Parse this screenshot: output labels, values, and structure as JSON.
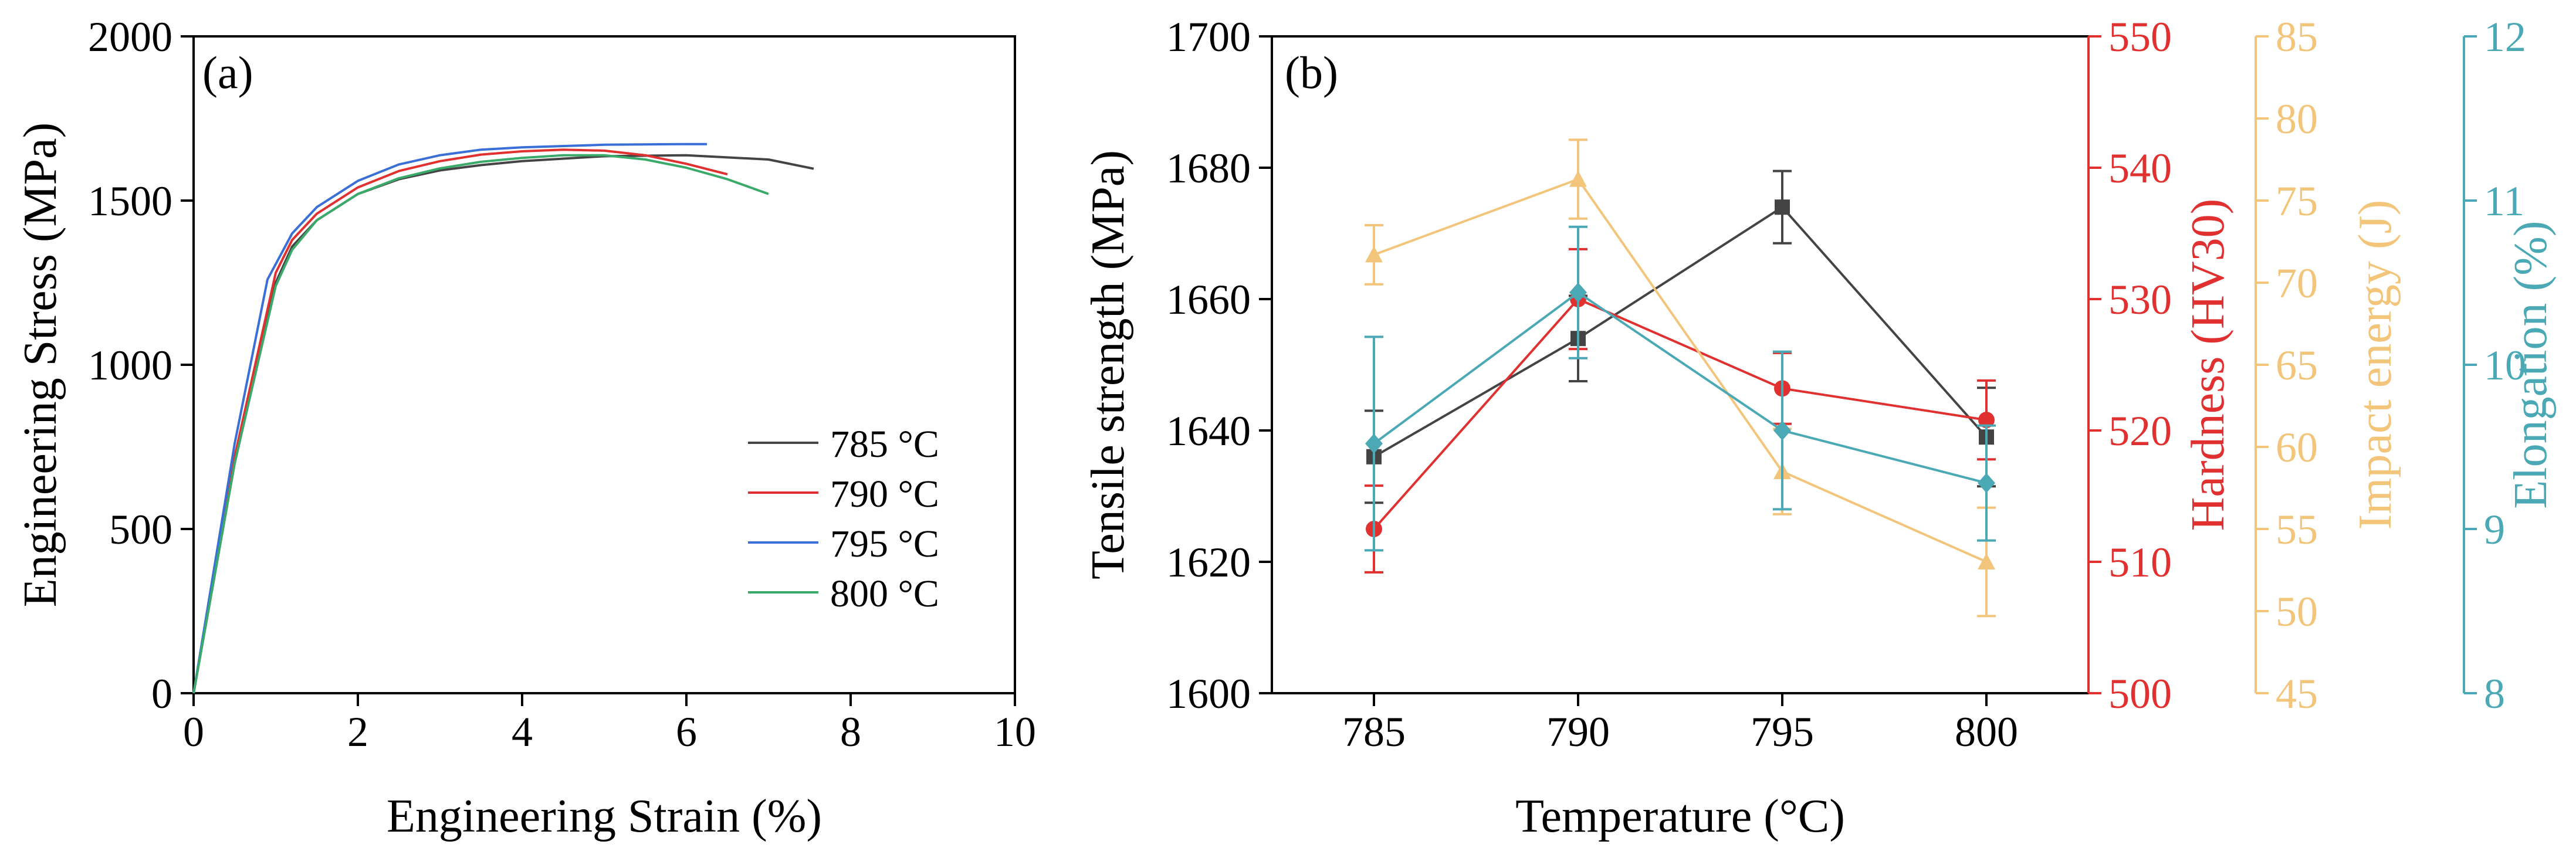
{
  "colors": {
    "black": "#444444",
    "red": "#e03030",
    "blue": "#3a6fd8",
    "green": "#3aaa6a",
    "orange": "#f2c57a",
    "teal": "#4aa9b5"
  },
  "chart_data": [
    {
      "type": "line",
      "panel_label": "(a)",
      "title": "",
      "xlabel": "Engineering Strain (%)",
      "ylabel": "Engineering Stress (MPa)",
      "xlim": [
        0,
        10
      ],
      "ylim": [
        0,
        2000
      ],
      "xticks": [
        0,
        2,
        4,
        6,
        8,
        10
      ],
      "yticks": [
        0,
        500,
        1000,
        1500,
        2000
      ],
      "grid": false,
      "legend_position": "bottom-right",
      "series": [
        {
          "name": "785 °C",
          "color_key": "black",
          "x": [
            0,
            0.5,
            1.0,
            1.2,
            1.5,
            2.0,
            2.5,
            3.0,
            3.5,
            4.0,
            5.0,
            6.0,
            7.0,
            7.55
          ],
          "y": [
            0,
            700,
            1250,
            1360,
            1440,
            1520,
            1565,
            1592,
            1608,
            1620,
            1635,
            1638,
            1625,
            1597
          ]
        },
        {
          "name": "790 °C",
          "color_key": "red",
          "x": [
            0,
            0.5,
            1.0,
            1.2,
            1.5,
            2.0,
            2.5,
            3.0,
            3.5,
            4.0,
            4.5,
            5.0,
            5.5,
            6.0,
            6.5
          ],
          "y": [
            0,
            720,
            1280,
            1380,
            1460,
            1540,
            1590,
            1620,
            1640,
            1650,
            1655,
            1652,
            1638,
            1612,
            1580
          ]
        },
        {
          "name": "795 °C",
          "color_key": "blue",
          "x": [
            0,
            0.5,
            0.9,
            1.2,
            1.5,
            2.0,
            2.5,
            3.0,
            3.5,
            4.0,
            5.0,
            6.0,
            6.25
          ],
          "y": [
            0,
            760,
            1260,
            1400,
            1480,
            1560,
            1610,
            1638,
            1655,
            1662,
            1670,
            1672,
            1672
          ]
        },
        {
          "name": "800 °C",
          "color_key": "green",
          "x": [
            0,
            0.5,
            1.0,
            1.2,
            1.5,
            2.0,
            2.5,
            3.0,
            3.5,
            4.0,
            4.5,
            5.0,
            5.5,
            6.0,
            6.5,
            7.0
          ],
          "y": [
            0,
            700,
            1240,
            1350,
            1440,
            1520,
            1568,
            1598,
            1618,
            1630,
            1638,
            1638,
            1625,
            1600,
            1565,
            1520
          ]
        }
      ],
      "legend": [
        "785 °C",
        "790 °C",
        "795 °C",
        "800 °C"
      ]
    },
    {
      "type": "line",
      "panel_label": "(b)",
      "title": "",
      "xlabel": "Temperature (°C)",
      "categories": [
        "785",
        "790",
        "795",
        "800"
      ],
      "x": [
        785,
        790,
        795,
        800
      ],
      "xlim": [
        782.5,
        802.5
      ],
      "series": [
        {
          "name": "Tensile strength",
          "axis_label": "Tensile strength (MPa)",
          "color_key": "black",
          "marker": "square",
          "ylim": [
            1600,
            1700
          ],
          "yticks": [
            1600,
            1620,
            1640,
            1660,
            1680,
            1700
          ],
          "values": [
            1636,
            1654,
            1674,
            1639
          ],
          "err": [
            7,
            6.5,
            5.5,
            7.5
          ]
        },
        {
          "name": "Hardness",
          "axis_label": "Hardness (HV30)",
          "color_key": "red",
          "marker": "circle",
          "ylim": [
            500,
            550
          ],
          "yticks": [
            500,
            510,
            520,
            530,
            540,
            550
          ],
          "values": [
            512.5,
            530.0,
            523.2,
            520.8
          ],
          "err": [
            3.3,
            3.8,
            2.7,
            3.0
          ]
        },
        {
          "name": "Impact energy",
          "axis_label": "Impact energy (J)",
          "color_key": "orange",
          "marker": "triangle",
          "ylim": [
            45,
            85
          ],
          "yticks": [
            45,
            50,
            55,
            60,
            65,
            70,
            75,
            80,
            85
          ],
          "values": [
            71.7,
            76.3,
            58.5,
            53.0
          ],
          "err": [
            1.8,
            2.4,
            2.6,
            3.3
          ]
        },
        {
          "name": "Elongation",
          "axis_label": "Elongation (%)",
          "color_key": "teal",
          "marker": "diamond",
          "ylim": [
            8,
            12
          ],
          "yticks": [
            8,
            9,
            10,
            11,
            12
          ],
          "values": [
            9.52,
            10.44,
            9.6,
            9.28
          ],
          "err": [
            0.65,
            0.4,
            0.48,
            0.35
          ]
        }
      ]
    }
  ]
}
